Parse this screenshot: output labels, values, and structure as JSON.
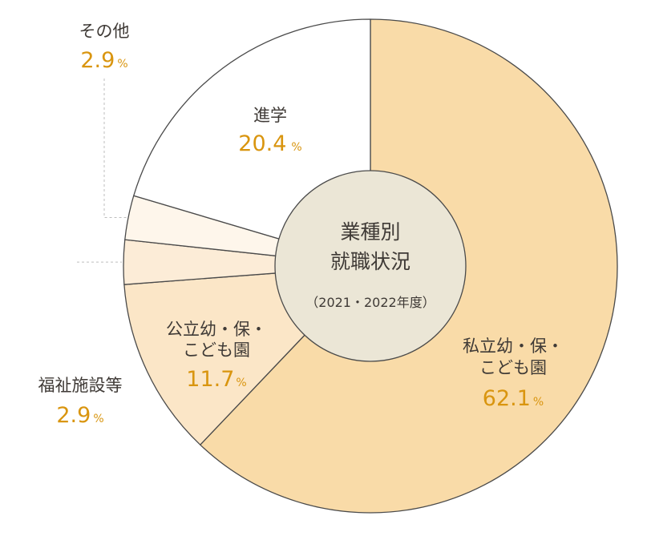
{
  "chart_data": {
    "type": "pie",
    "center_title_line1": "業種別",
    "center_title_line2": "就職状況",
    "center_subtitle": "（2021・2022年度）",
    "slices": [
      {
        "label": "私立幼・保・こども園",
        "label_line1": "私立幼・保・",
        "label_line2": "こども園",
        "value": 62.1,
        "value_text": "62.1",
        "unit": "%",
        "color": "#f9dba8"
      },
      {
        "label": "公立幼・保・こども園",
        "label_line1": "公立幼・保・",
        "label_line2": "こども園",
        "value": 11.7,
        "value_text": "11.7",
        "unit": "%",
        "color": "#fbe6c7"
      },
      {
        "label": "福祉施設等",
        "value": 2.9,
        "value_text": "2.9",
        "unit": "%",
        "color": "#fcecd7"
      },
      {
        "label": "その他",
        "value": 2.9,
        "value_text": "2.9",
        "unit": "%",
        "color": "#fef6eb"
      },
      {
        "label": "進学",
        "value": 20.4,
        "value_text": "20.4",
        "unit": "%",
        "color": "#ffffff"
      }
    ],
    "center_color": "#ebe6d6",
    "stroke_color": "#4a4a4a",
    "leader_color": "#bdbdbd"
  }
}
